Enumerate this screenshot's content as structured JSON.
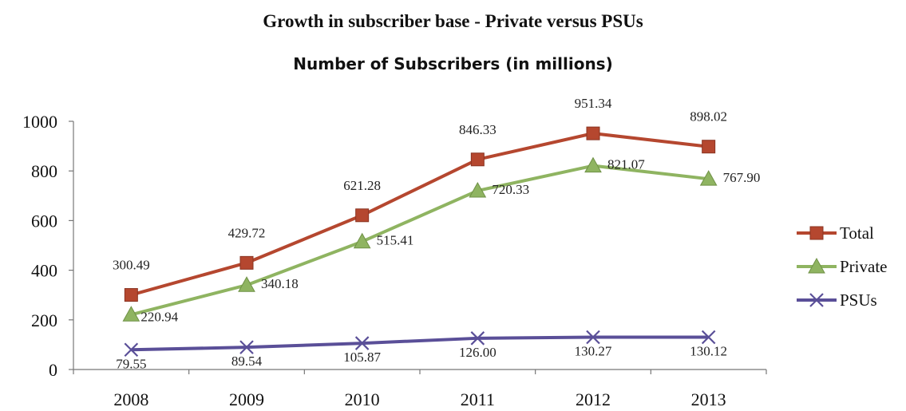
{
  "page_title": "Growth in subscriber base - Private versus PSUs",
  "chart_data": {
    "type": "line",
    "title": "Number of Subscribers (in millions)",
    "xlabel": "",
    "ylabel": "",
    "categories": [
      "2008",
      "2009",
      "2010",
      "2011",
      "2012",
      "2013"
    ],
    "ylim": [
      0,
      1000
    ],
    "yticks": [
      0,
      200,
      400,
      600,
      800,
      1000
    ],
    "grid": false,
    "legend_position": "right",
    "series": [
      {
        "name": "Total",
        "marker": "square",
        "color": "#b5472f",
        "values": [
          300.49,
          429.72,
          621.28,
          846.33,
          951.34,
          898.02
        ],
        "labels": [
          "300.49",
          "429.72",
          "621.28",
          "846.33",
          "951.34",
          "898.02"
        ]
      },
      {
        "name": "Private",
        "marker": "triangle",
        "color": "#8fb461",
        "values": [
          220.94,
          340.18,
          515.41,
          720.33,
          821.07,
          767.9
        ],
        "labels": [
          "220.94",
          "340.18",
          "515.41",
          "720.33",
          "821.07",
          "767.90"
        ]
      },
      {
        "name": "PSUs",
        "marker": "x",
        "color": "#5a4f98",
        "values": [
          79.55,
          89.54,
          105.87,
          126.0,
          130.27,
          130.12
        ],
        "labels": [
          "79.55",
          "89.54",
          "105.87",
          "126.00",
          "130.27",
          "130.12"
        ]
      }
    ]
  }
}
